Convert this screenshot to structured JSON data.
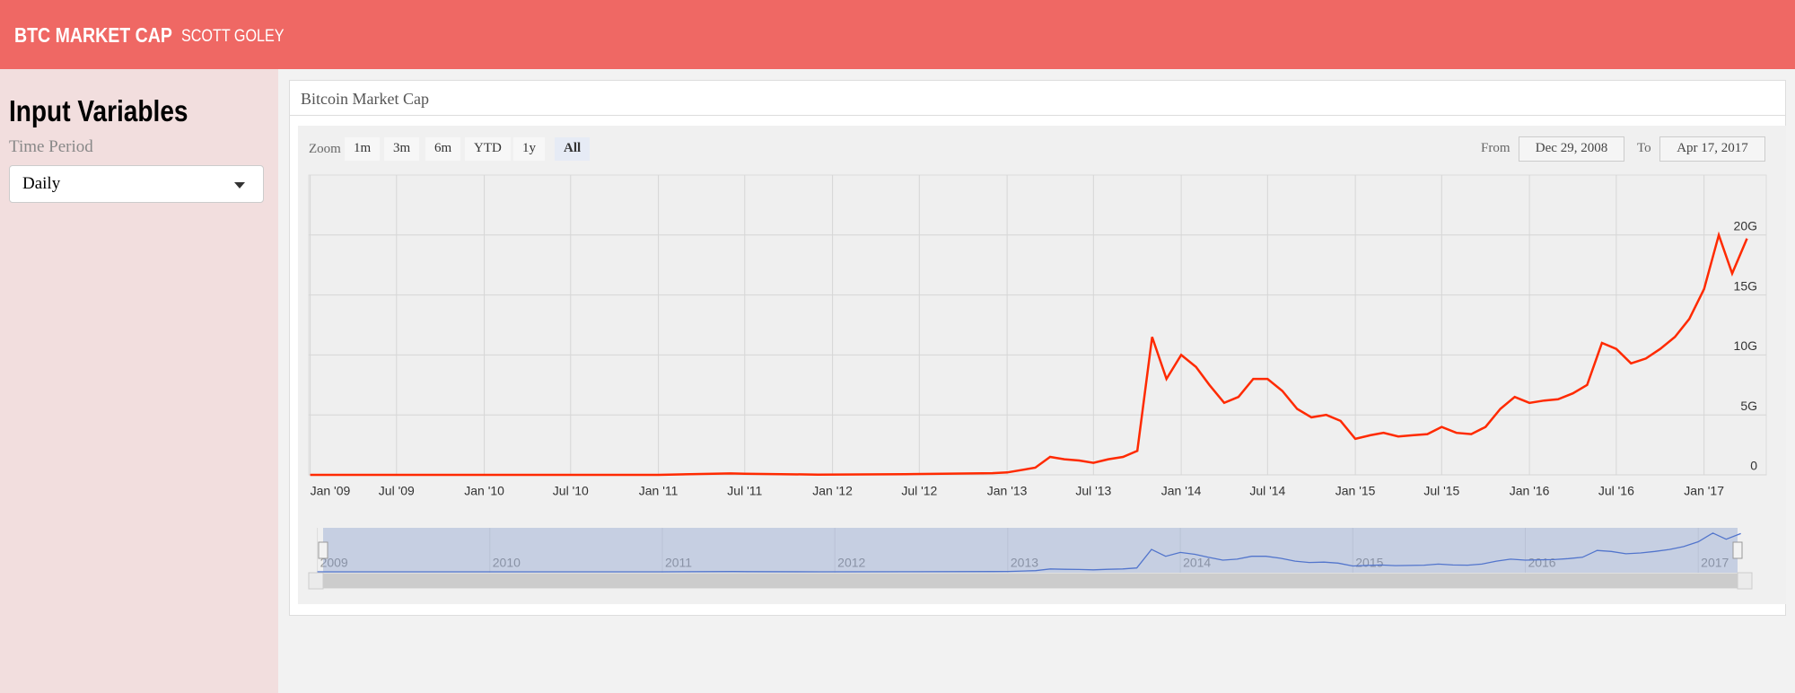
{
  "header": {
    "brand": "BTC MARKET CAP",
    "author": "SCOTT GOLEY"
  },
  "sidebar": {
    "title": "Input Variables",
    "label": "Time Period",
    "select": "Daily"
  },
  "panel": {
    "title": "Bitcoin Market Cap"
  },
  "range_selector": {
    "zoom_label": "Zoom",
    "buttons": [
      "1m",
      "3m",
      "6m",
      "YTD",
      "1y",
      "All"
    ],
    "selected": 5,
    "from_label": "From",
    "from": "Dec 29, 2008",
    "to_label": "To",
    "to": "Apr 17, 2017"
  },
  "chart_data": {
    "type": "line",
    "color": "#ff2a00",
    "x": [
      "2009-01",
      "2009-07",
      "2010-01",
      "2010-07",
      "2011-01",
      "2011-06",
      "2011-07",
      "2011-12",
      "2012-06",
      "2012-12",
      "2013-01",
      "2013-03",
      "2013-04",
      "2013-05",
      "2013-06",
      "2013-07",
      "2013-08",
      "2013-09",
      "2013-10",
      "2013-11",
      "2013-12",
      "2014-01",
      "2014-02",
      "2014-03",
      "2014-04",
      "2014-05",
      "2014-06",
      "2014-07",
      "2014-08",
      "2014-09",
      "2014-10",
      "2014-11",
      "2014-12",
      "2015-01",
      "2015-02",
      "2015-03",
      "2015-04",
      "2015-05",
      "2015-06",
      "2015-07",
      "2015-08",
      "2015-09",
      "2015-10",
      "2015-11",
      "2015-12",
      "2016-01",
      "2016-02",
      "2016-03",
      "2016-04",
      "2016-05",
      "2016-06",
      "2016-07",
      "2016-08",
      "2016-09",
      "2016-10",
      "2016-11",
      "2016-12",
      "2017-01",
      "2017-02",
      "2017-03",
      "2017-04"
    ],
    "values": [
      0,
      0,
      0,
      1000000,
      2000000,
      120000000,
      100000000,
      20000000,
      60000000,
      140000000,
      200000000,
      600000000,
      1500000000,
      1300000000,
      1200000000,
      1000000000,
      1300000000,
      1500000000,
      2000000000,
      11500000000,
      8000000000,
      10000000000,
      9000000000,
      7500000000,
      6000000000,
      6500000000,
      8000000000,
      8000000000,
      7000000000,
      5500000000,
      4800000000,
      5000000000,
      4500000000,
      3000000000,
      3300000000,
      3500000000,
      3200000000,
      3300000000,
      3400000000,
      4000000000,
      3500000000,
      3400000000,
      4000000000,
      5500000000,
      6500000000,
      6000000000,
      6200000000,
      6300000000,
      6800000000,
      7500000000,
      11000000000,
      10500000000,
      9300000000,
      9700000000,
      10500000000,
      11500000000,
      13000000000,
      15500000000,
      20000000000,
      16800000000,
      19700000000
    ],
    "xlim": [
      "2008-12-29",
      "2017-04-17"
    ],
    "xticks": [
      {
        "value": "2009-01",
        "label": "Jan '09"
      },
      {
        "value": "2009-07",
        "label": "Jul '09"
      },
      {
        "value": "2010-01",
        "label": "Jan '10"
      },
      {
        "value": "2010-07",
        "label": "Jul '10"
      },
      {
        "value": "2011-01",
        "label": "Jan '11"
      },
      {
        "value": "2011-07",
        "label": "Jul '11"
      },
      {
        "value": "2012-01",
        "label": "Jan '12"
      },
      {
        "value": "2012-07",
        "label": "Jul '12"
      },
      {
        "value": "2013-01",
        "label": "Jan '13"
      },
      {
        "value": "2013-07",
        "label": "Jul '13"
      },
      {
        "value": "2014-01",
        "label": "Jan '14"
      },
      {
        "value": "2014-07",
        "label": "Jul '14"
      },
      {
        "value": "2015-01",
        "label": "Jan '15"
      },
      {
        "value": "2015-07",
        "label": "Jul '15"
      },
      {
        "value": "2016-01",
        "label": "Jan '16"
      },
      {
        "value": "2016-07",
        "label": "Jul '16"
      },
      {
        "value": "2017-01",
        "label": "Jan '17"
      }
    ],
    "ylim": [
      0,
      25000000000
    ],
    "yticks": [
      {
        "value": 0,
        "label": "0"
      },
      {
        "value": 5000000000,
        "label": "5G"
      },
      {
        "value": 10000000000,
        "label": "10G"
      },
      {
        "value": 15000000000,
        "label": "15G"
      },
      {
        "value": 20000000000,
        "label": "20G"
      }
    ],
    "grid": true,
    "navigator": {
      "color": "#4a6fd0",
      "xticks": [
        {
          "value": "2009-01",
          "label": "2009"
        },
        {
          "value": "2010-01",
          "label": "2010"
        },
        {
          "value": "2011-01",
          "label": "2011"
        },
        {
          "value": "2012-01",
          "label": "2012"
        },
        {
          "value": "2013-01",
          "label": "2013"
        },
        {
          "value": "2014-01",
          "label": "2014"
        },
        {
          "value": "2015-01",
          "label": "2015"
        },
        {
          "value": "2016-01",
          "label": "2016"
        },
        {
          "value": "2017-01",
          "label": "2017"
        }
      ]
    }
  }
}
